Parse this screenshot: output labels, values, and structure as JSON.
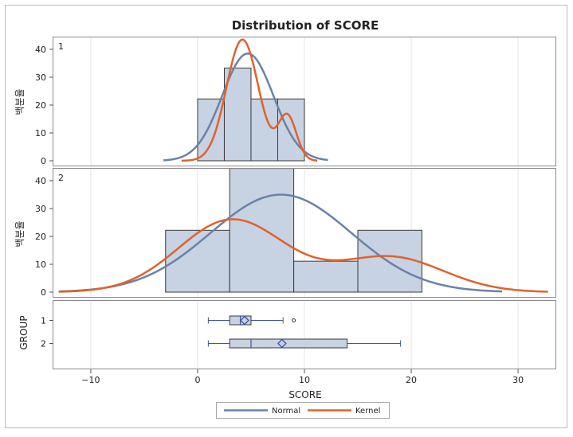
{
  "chart_data": {
    "type": "histogram",
    "title": "Distribution of SCORE",
    "xlabel": "SCORE",
    "xlim": [
      -13.5,
      33.5
    ],
    "xticks": [
      -10,
      0,
      10,
      20,
      30
    ],
    "xtick_labels": [
      "−10",
      "0",
      "10",
      "20",
      "30"
    ],
    "ylabel": "백분율",
    "ylim": [
      0,
      46
    ],
    "yticks": [
      0,
      10,
      20,
      30,
      40
    ],
    "grid": true,
    "legend": {
      "position": "bottom",
      "items": [
        {
          "label": "Normal",
          "color": "#6a82a8"
        },
        {
          "label": "Kernel",
          "color": "#e0622c"
        }
      ]
    },
    "colors": {
      "bar_fill": "#c7d2e3",
      "bar_stroke": "#3a3a3a",
      "normal": "#6a82a8",
      "kernel": "#e0622c",
      "box_fill": "#c7d2e3",
      "box_stroke": "#3c55a5",
      "grid": "#e4e4e4"
    },
    "panels": [
      {
        "label": "1",
        "bins": [
          {
            "x0": 0,
            "x1": 2.5,
            "value": 22.2
          },
          {
            "x0": 2.5,
            "x1": 5,
            "value": 33.3
          },
          {
            "x0": 5,
            "x1": 7.5,
            "value": 22.2
          },
          {
            "x0": 7.5,
            "x1": 10,
            "value": 22.2
          }
        ],
        "normal": {
          "mean": 4.7,
          "sd": 2.4,
          "scale": 38.5,
          "range": [
            -3.2,
            12.2
          ]
        },
        "kernel": {
          "components": [
            {
              "mean": 4.2,
              "sd": 1.5,
              "weight": 43.5
            },
            {
              "mean": 8.4,
              "sd": 0.85,
              "weight": 16
            }
          ],
          "range": [
            -1.5,
            11.2
          ]
        }
      },
      {
        "label": "2",
        "bins": [
          {
            "x0": -3,
            "x1": 3,
            "value": 22.2
          },
          {
            "x0": 3,
            "x1": 9,
            "value": 44.4
          },
          {
            "x0": 9,
            "x1": 15,
            "value": 11.1
          },
          {
            "x0": 15,
            "x1": 21,
            "value": 22.2
          }
        ],
        "normal": {
          "mean": 7.8,
          "sd": 6.6,
          "scale": 35,
          "range": [
            -13,
            28.5
          ]
        },
        "kernel": {
          "components": [
            {
              "mean": 3.2,
              "sd": 5.0,
              "weight": 26
            },
            {
              "mean": 18.0,
              "sd": 5.0,
              "weight": 12.6
            }
          ],
          "range": [
            -13,
            32.8
          ]
        }
      }
    ],
    "boxplot": {
      "axis_label": "GROUP",
      "groups": [
        {
          "label": "1",
          "min": 1,
          "q1": 3,
          "median": 4,
          "q3": 5,
          "max": 8,
          "mean": 4.4,
          "outliers": [
            9
          ]
        },
        {
          "label": "2",
          "min": 1,
          "q1": 3,
          "median": 5,
          "q3": 14,
          "max": 19,
          "mean": 7.9,
          "outliers": []
        }
      ]
    }
  }
}
